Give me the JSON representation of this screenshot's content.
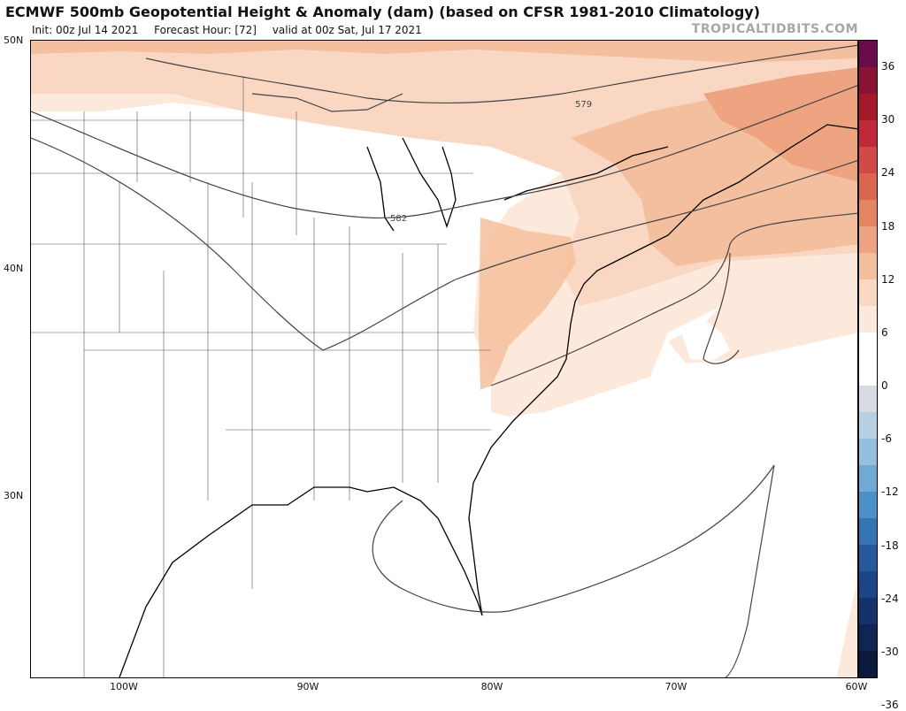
{
  "header": {
    "title": "ECMWF 500mb Geopotential Height & Anomaly (dam) (based on CFSR 1981-2010 Climatology)",
    "init": "Init: 00z Jul 14 2021",
    "forecast_hour": "Forecast Hour: [72]",
    "valid": "valid at 00z Sat, Jul 17 2021",
    "brand": "TROPICALTIDBITS.COM"
  },
  "axes": {
    "lat_labels": [
      "50N",
      "40N",
      "30N"
    ],
    "lon_labels": [
      "100W",
      "90W",
      "80W",
      "70W",
      "60W"
    ]
  },
  "contours": {
    "labels": [
      "579",
      "582"
    ]
  },
  "colorbar": {
    "labels": [
      "36",
      "30",
      "24",
      "18",
      "12",
      "6",
      "0",
      "-6",
      "-12",
      "-18",
      "-24",
      "-30",
      "-36"
    ],
    "colors": [
      "#6a0b4e",
      "#891431",
      "#a51a2a",
      "#c1283a",
      "#d24a48",
      "#db6650",
      "#e4855f",
      "#eea381",
      "#f4bf9e",
      "#fad7c3",
      "#fde9dc",
      "#ffffff",
      "#ffffff",
      "#d6dce4",
      "#b7d0e3",
      "#94c0de",
      "#6eaad4",
      "#4b90c7",
      "#3474b3",
      "#255b9c",
      "#1b4584",
      "#15336a",
      "#102552",
      "#0b1a3c"
    ]
  }
}
